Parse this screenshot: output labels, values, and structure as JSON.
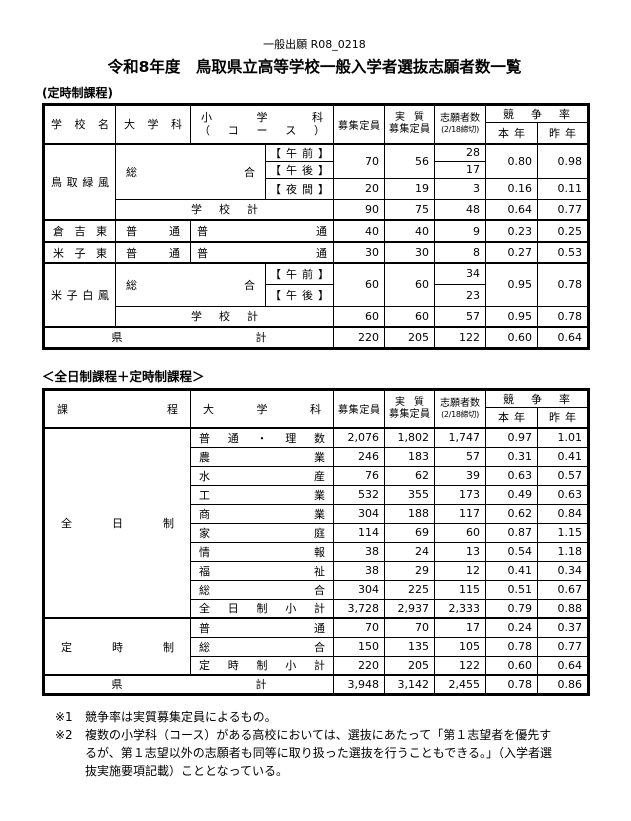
{
  "page": {
    "doc_code": "一般出願 R08_0218",
    "title": "令和8年度　鳥取県立高等学校一般入学者選抜志願者数一覧",
    "section1_label": "(定時制課程)",
    "section2_label": "＜全日制課程＋定時制課程＞"
  },
  "hdr": {
    "school": "学校名",
    "course": "課程",
    "dept": "大学科",
    "minor_line1": "小学科",
    "minor_line2": "（コース）",
    "capacity": "募集定員",
    "real_line1": "実質",
    "real_line2": "募集定員",
    "applicants": "志願者数",
    "deadline": "(2/18締切)",
    "ratio": "競争率",
    "this_year": "本年",
    "last_year": "昨年"
  },
  "t1": {
    "rows": [
      {
        "school": "鳥取緑風",
        "dept": "総合",
        "course": "【午前】",
        "cap": "70",
        "real": "56",
        "app": "28",
        "ty": "0.80",
        "ly": "0.98"
      },
      {
        "course": "【午後】",
        "app": "17"
      },
      {
        "course": "【夜間】",
        "cap": "20",
        "real": "19",
        "app": "3",
        "ty": "0.16",
        "ly": "0.11"
      },
      {
        "label": "学校計",
        "cap": "90",
        "real": "75",
        "app": "48",
        "ty": "0.64",
        "ly": "0.77"
      },
      {
        "school": "倉吉東",
        "dept": "普通",
        "minor": "普通",
        "cap": "40",
        "real": "40",
        "app": "9",
        "ty": "0.23",
        "ly": "0.25"
      },
      {
        "school": "米子東",
        "dept": "普通",
        "minor": "普通",
        "cap": "30",
        "real": "30",
        "app": "8",
        "ty": "0.27",
        "ly": "0.53"
      },
      {
        "school": "米子白鳳",
        "dept": "総合",
        "course": "【午前】",
        "cap": "60",
        "real": "60",
        "app": "34",
        "ty": "0.95",
        "ly": "0.78"
      },
      {
        "course": "【午後】",
        "app": "23"
      },
      {
        "label": "学校計",
        "cap": "60",
        "real": "60",
        "app": "57",
        "ty": "0.95",
        "ly": "0.78"
      },
      {
        "label": "県計",
        "cap": "220",
        "real": "205",
        "app": "122",
        "ty": "0.60",
        "ly": "0.64"
      }
    ]
  },
  "t2": {
    "rows": [
      {
        "course": "全日制",
        "dept": "普通・理数",
        "cap": "2,076",
        "real": "1,802",
        "app": "1,747",
        "ty": "0.97",
        "ly": "1.01"
      },
      {
        "dept": "農業",
        "cap": "246",
        "real": "183",
        "app": "57",
        "ty": "0.31",
        "ly": "0.41"
      },
      {
        "dept": "水産",
        "cap": "76",
        "real": "62",
        "app": "39",
        "ty": "0.63",
        "ly": "0.57"
      },
      {
        "dept": "工業",
        "cap": "532",
        "real": "355",
        "app": "173",
        "ty": "0.49",
        "ly": "0.63"
      },
      {
        "dept": "商業",
        "cap": "304",
        "real": "188",
        "app": "117",
        "ty": "0.62",
        "ly": "0.84"
      },
      {
        "dept": "家庭",
        "cap": "114",
        "real": "69",
        "app": "60",
        "ty": "0.87",
        "ly": "1.15"
      },
      {
        "dept": "情報",
        "cap": "38",
        "real": "24",
        "app": "13",
        "ty": "0.54",
        "ly": "1.18"
      },
      {
        "dept": "福祉",
        "cap": "38",
        "real": "29",
        "app": "12",
        "ty": "0.41",
        "ly": "0.34"
      },
      {
        "dept": "総合",
        "cap": "304",
        "real": "225",
        "app": "115",
        "ty": "0.51",
        "ly": "0.67"
      },
      {
        "dept": "全日制小計",
        "cap": "3,728",
        "real": "2,937",
        "app": "2,333",
        "ty": "0.79",
        "ly": "0.88"
      },
      {
        "course": "定時制",
        "dept": "普通",
        "cap": "70",
        "real": "70",
        "app": "17",
        "ty": "0.24",
        "ly": "0.37"
      },
      {
        "dept": "総合",
        "cap": "150",
        "real": "135",
        "app": "105",
        "ty": "0.78",
        "ly": "0.77"
      },
      {
        "dept": "定時制小計",
        "cap": "220",
        "real": "205",
        "app": "122",
        "ty": "0.60",
        "ly": "0.64"
      },
      {
        "label": "県計",
        "cap": "3,948",
        "real": "3,142",
        "app": "2,455",
        "ty": "0.78",
        "ly": "0.86"
      }
    ]
  },
  "notes": [
    {
      "marker": "※1",
      "text": "競争率は実質募集定員によるもの。"
    },
    {
      "marker": "※2",
      "text": "複数の小学科（コース）がある高校においては、選抜にあたって「第１志望者を優先するが、第１志望以外の志願者も同等に取り扱った選抜を行うこともできる。」（入学者選抜実施要項記載）こととなっている。"
    }
  ]
}
